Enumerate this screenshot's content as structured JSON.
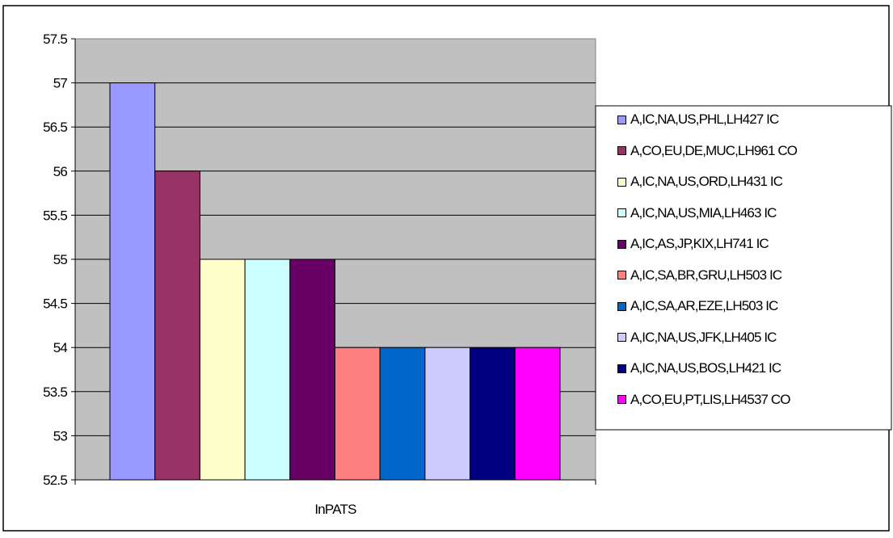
{
  "chart_data": {
    "type": "bar",
    "categories": [
      "InPATS"
    ],
    "series": [
      {
        "name": "A,IC,NA,US,PHL,LH427 IC",
        "values": [
          57
        ],
        "color": "#9999FF"
      },
      {
        "name": "A,CO,EU,DE,MUC,LH961 CO",
        "values": [
          56
        ],
        "color": "#993366"
      },
      {
        "name": "A,IC,NA,US,ORD,LH431 IC",
        "values": [
          55
        ],
        "color": "#FFFFCC"
      },
      {
        "name": "A,IC,NA,US,MIA,LH463 IC",
        "values": [
          55
        ],
        "color": "#CCFFFF"
      },
      {
        "name": "A,IC,AS,JP,KIX,LH741 IC",
        "values": [
          55
        ],
        "color": "#660066"
      },
      {
        "name": "A,IC,SA,BR,GRU,LH503 IC",
        "values": [
          54
        ],
        "color": "#FF8080"
      },
      {
        "name": "A,IC,SA,AR,EZE,LH503 IC",
        "values": [
          54
        ],
        "color": "#0066CC"
      },
      {
        "name": "A,IC,NA,US,JFK,LH405 IC",
        "values": [
          54
        ],
        "color": "#CCCCFF"
      },
      {
        "name": "A,IC,NA,US,BOS,LH421 IC",
        "values": [
          54
        ],
        "color": "#000080"
      },
      {
        "name": "A,CO,EU,PT,LIS,LH4537 CO",
        "values": [
          54
        ],
        "color": "#FF00FF"
      }
    ],
    "ylim": [
      52.5,
      57.5
    ],
    "yticks": [
      "52.5",
      "53",
      "53.5",
      "54",
      "54.5",
      "55",
      "55.5",
      "56",
      "56.5",
      "57",
      "57.5"
    ],
    "grid": true,
    "plot_background": "#C0C0C0",
    "legend_position": "right"
  }
}
